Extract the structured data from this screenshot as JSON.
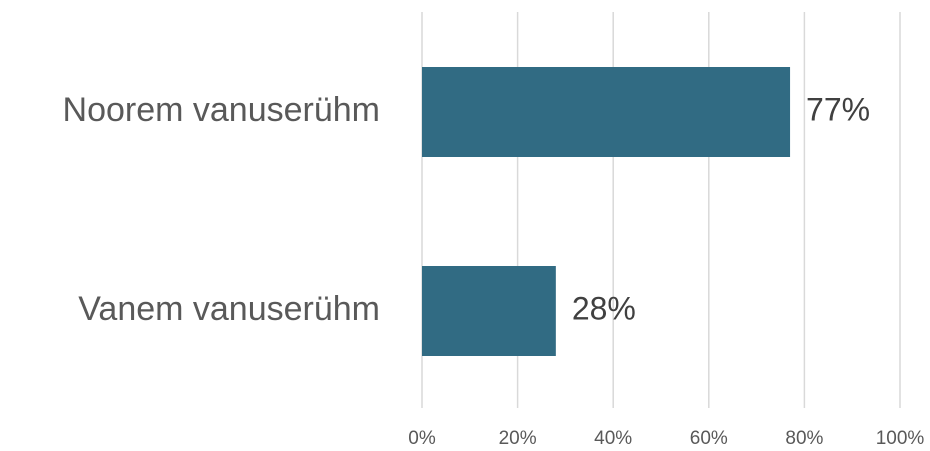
{
  "chart_data": {
    "type": "bar",
    "orientation": "horizontal",
    "title": "",
    "xlabel": "",
    "ylabel": "",
    "categories": [
      "Noorem vanuserühm",
      "Vanem vanuserühm"
    ],
    "values": [
      77,
      28
    ],
    "data_labels": [
      "77%",
      "28%"
    ],
    "xlim": [
      0,
      100
    ],
    "x_ticks": [
      0,
      20,
      40,
      60,
      80,
      100
    ],
    "x_tick_labels": [
      "0%",
      "20%",
      "40%",
      "60%",
      "80%",
      "100%"
    ],
    "grid": true,
    "legend": "none",
    "colors": {
      "bar": "#316b83",
      "grid": "#d9d9d9",
      "category_text": "#595959",
      "value_text": "#404040"
    }
  }
}
